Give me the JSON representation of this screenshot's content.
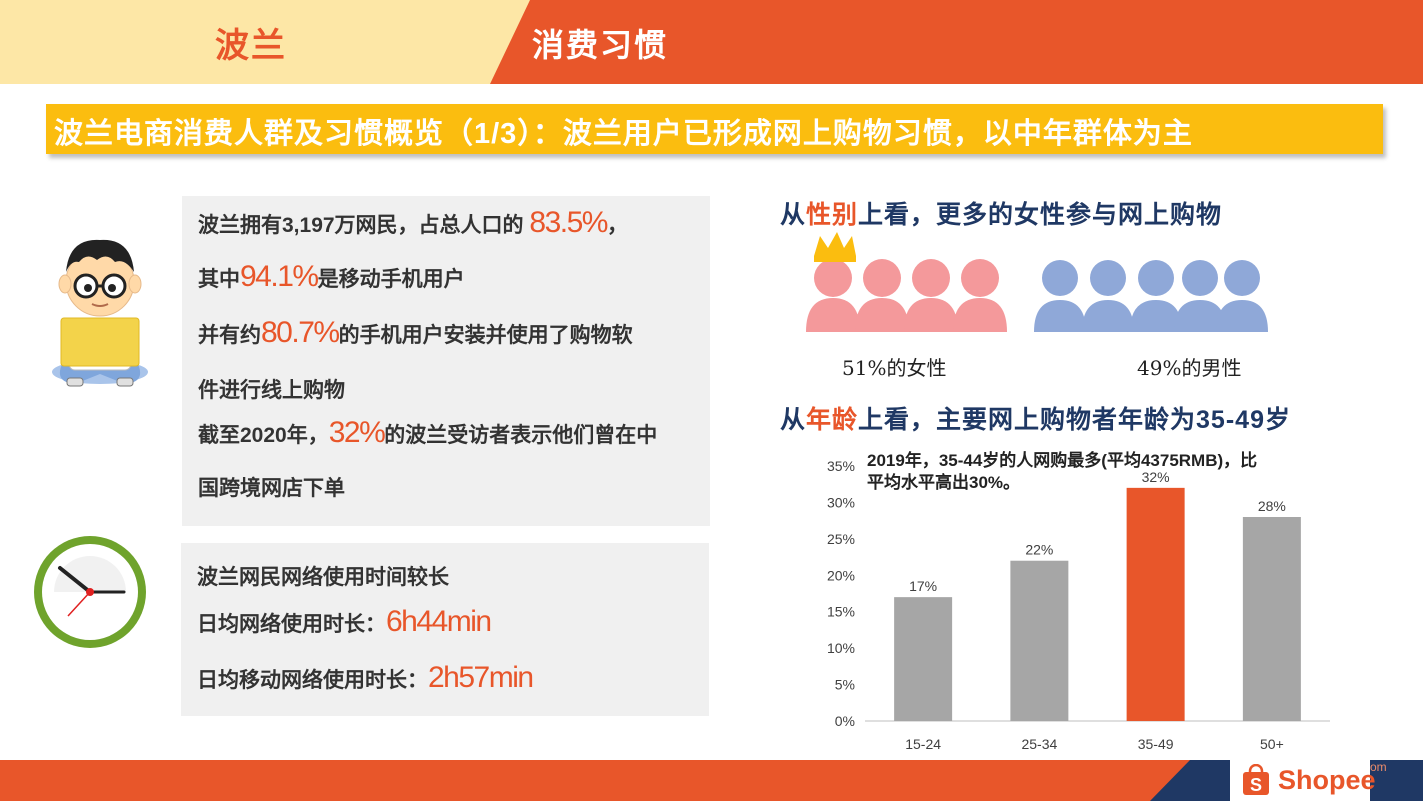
{
  "header": {
    "country": "波兰",
    "section": "消费习惯"
  },
  "title": "波兰电商消费人群及习惯概览（1/3）：波兰用户已形成网上购物习惯，以中年群体为主",
  "box1": {
    "l1_pre": "波兰拥有3,197万网民，占总人口的",
    "l1_hl": "83.5%",
    "l1_post": "，",
    "l2_pre": "其中",
    "l2_hl": "94.1%",
    "l2_post": "是移动手机用户",
    "l3_pre": "并有约",
    "l3_hl": "80.7%",
    "l3_post": "的手机用户安装并使用了购物软",
    "l4": "件进行线上购物",
    "l5_pre": "截至2020年，",
    "l5_hl": "32%",
    "l5_post": "的波兰受访者表示他们曾在中",
    "l6": "国跨境网店下单"
  },
  "box2": {
    "l1": "波兰网民网络使用时间较长",
    "l2_pre": "日均网络使用时长：",
    "l2_hl": "6h44min",
    "l3_pre": "日均移动网络使用时长：",
    "l3_hl": "2h57min"
  },
  "gender": {
    "head_pre": "从",
    "head_hl": "性别",
    "head_post": "上看，更多的女性参与网上购物",
    "female_label": "51%的女性",
    "male_label": "49%的男性",
    "female_color": "#f4999b",
    "male_color": "#8fa8d8",
    "crown_color": "#fbbd0f"
  },
  "age": {
    "head_pre": "从",
    "head_hl": "年龄",
    "head_post": "上看，主要网上购物者年龄为35-49岁",
    "note_l1": "2019年，35-44岁的人网购最多(平均4375RMB)，比",
    "note_l2": "平均水平高出30%。"
  },
  "chart_data": {
    "type": "bar",
    "categories": [
      "15-24",
      "25-34",
      "35-49",
      "50+"
    ],
    "values": [
      17,
      22,
      32,
      28
    ],
    "value_labels": [
      "17%",
      "22%",
      "32%",
      "28%"
    ],
    "y_ticks": [
      "0%",
      "5%",
      "10%",
      "15%",
      "20%",
      "25%",
      "30%",
      "35%"
    ],
    "ylim": [
      0,
      35
    ],
    "colors": [
      "#a6a6a6",
      "#a6a6a6",
      "#e8562a",
      "#a6a6a6"
    ],
    "grid": false,
    "legend": "none"
  },
  "footer": {
    "logo": "Shopee",
    "faint": "om"
  },
  "colors": {
    "accent": "#e8562a",
    "title_bar": "#fbbd0f",
    "navy": "#1f3864",
    "header_left": "#fde7a6"
  }
}
